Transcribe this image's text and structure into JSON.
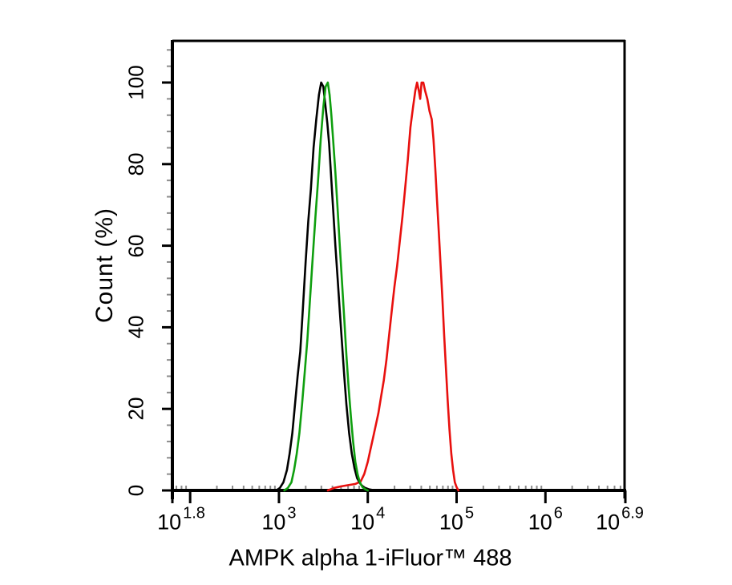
{
  "figure": {
    "background": "#ffffff",
    "axis_color": "#000000",
    "minor_tick_color": "#8c8c8c"
  },
  "chart_data": {
    "type": "line",
    "subtype": "flow-cytometry-histogram-overlay",
    "title": "",
    "xlabel": "AMPK alpha 1-iFluor™ 488",
    "ylabel": "Count (%)",
    "x_scale": "log10",
    "x_range_log10": [
      1.8,
      6.9
    ],
    "y_range": [
      0,
      110.4
    ],
    "grid": false,
    "legend": "none",
    "x_ticks": [
      {
        "base": "10",
        "exp": "1.8",
        "log": 1.8
      },
      {
        "base": "10",
        "exp": "3",
        "log": 3
      },
      {
        "base": "10",
        "exp": "4",
        "log": 4
      },
      {
        "base": "10",
        "exp": "5",
        "log": 5
      },
      {
        "base": "10",
        "exp": "6",
        "log": 6
      },
      {
        "base": "10",
        "exp": "6.9",
        "log": 6.9
      }
    ],
    "x_unlabeled_major_ticks_log": [
      2
    ],
    "y_ticks": [
      {
        "label": "0",
        "value": 0
      },
      {
        "label": "20",
        "value": 20
      },
      {
        "label": "40",
        "value": 40
      },
      {
        "label": "60",
        "value": 60
      },
      {
        "label": "80",
        "value": 80
      },
      {
        "label": "100",
        "value": 100
      }
    ],
    "y_minor_step": 4,
    "series": [
      {
        "name": "red-histogram",
        "color": "#e8100e",
        "peak_log10": 4.6,
        "peak_percent": 100,
        "points": [
          [
            3.55,
            0
          ],
          [
            3.62,
            0.6
          ],
          [
            3.7,
            1
          ],
          [
            3.78,
            1.3
          ],
          [
            3.86,
            1.6
          ],
          [
            3.92,
            2.2
          ],
          [
            3.96,
            4
          ],
          [
            4.0,
            7
          ],
          [
            4.03,
            10
          ],
          [
            4.06,
            13
          ],
          [
            4.09,
            16
          ],
          [
            4.12,
            19
          ],
          [
            4.15,
            23
          ],
          [
            4.18,
            27
          ],
          [
            4.21,
            32
          ],
          [
            4.24,
            38
          ],
          [
            4.27,
            44
          ],
          [
            4.3,
            50
          ],
          [
            4.33,
            55
          ],
          [
            4.36,
            61
          ],
          [
            4.39,
            67
          ],
          [
            4.42,
            74
          ],
          [
            4.45,
            81
          ],
          [
            4.48,
            89
          ],
          [
            4.51,
            94
          ],
          [
            4.535,
            98
          ],
          [
            4.555,
            100
          ],
          [
            4.575,
            98
          ],
          [
            4.59,
            96
          ],
          [
            4.605,
            100
          ],
          [
            4.625,
            100
          ],
          [
            4.645,
            98
          ],
          [
            4.67,
            96
          ],
          [
            4.695,
            93
          ],
          [
            4.72,
            91
          ],
          [
            4.74,
            86
          ],
          [
            4.76,
            79
          ],
          [
            4.78,
            71
          ],
          [
            4.8,
            63
          ],
          [
            4.82,
            55
          ],
          [
            4.84,
            47
          ],
          [
            4.86,
            38
          ],
          [
            4.88,
            30
          ],
          [
            4.9,
            22
          ],
          [
            4.92,
            15
          ],
          [
            4.94,
            9
          ],
          [
            4.96,
            5
          ],
          [
            4.98,
            2
          ],
          [
            5.0,
            0.8
          ],
          [
            5.02,
            0
          ]
        ]
      },
      {
        "name": "black-histogram",
        "color": "#000000",
        "peak_log10": 3.49,
        "peak_percent": 100,
        "points": [
          [
            2.97,
            0
          ],
          [
            3.01,
            0.6
          ],
          [
            3.05,
            2
          ],
          [
            3.09,
            5
          ],
          [
            3.12,
            9
          ],
          [
            3.15,
            14
          ],
          [
            3.18,
            21
          ],
          [
            3.21,
            28
          ],
          [
            3.24,
            34
          ],
          [
            3.27,
            45
          ],
          [
            3.3,
            56
          ],
          [
            3.33,
            66
          ],
          [
            3.36,
            74
          ],
          [
            3.39,
            84
          ],
          [
            3.42,
            91
          ],
          [
            3.45,
            97
          ],
          [
            3.475,
            100
          ],
          [
            3.5,
            99
          ],
          [
            3.52,
            95
          ],
          [
            3.545,
            90
          ],
          [
            3.565,
            85
          ],
          [
            3.59,
            76
          ],
          [
            3.61,
            69
          ],
          [
            3.635,
            60
          ],
          [
            3.66,
            52
          ],
          [
            3.685,
            44
          ],
          [
            3.71,
            36
          ],
          [
            3.735,
            28
          ],
          [
            3.76,
            21
          ],
          [
            3.79,
            14
          ],
          [
            3.82,
            9
          ],
          [
            3.85,
            5.5
          ],
          [
            3.88,
            3
          ],
          [
            3.92,
            1.5
          ],
          [
            3.96,
            0.7
          ],
          [
            4.01,
            0.3
          ],
          [
            4.06,
            0.1
          ],
          [
            4.1,
            0
          ]
        ]
      },
      {
        "name": "green-histogram",
        "color": "#0f9f0f",
        "peak_log10": 3.55,
        "peak_percent": 100,
        "points": [
          [
            3.06,
            0
          ],
          [
            3.1,
            0.6
          ],
          [
            3.14,
            2
          ],
          [
            3.17,
            5
          ],
          [
            3.2,
            9
          ],
          [
            3.23,
            14
          ],
          [
            3.26,
            21
          ],
          [
            3.29,
            29
          ],
          [
            3.32,
            37
          ],
          [
            3.35,
            47
          ],
          [
            3.38,
            57
          ],
          [
            3.41,
            67
          ],
          [
            3.44,
            76
          ],
          [
            3.47,
            86
          ],
          [
            3.5,
            94
          ],
          [
            3.525,
            99
          ],
          [
            3.55,
            100
          ],
          [
            3.57,
            97
          ],
          [
            3.59,
            92
          ],
          [
            3.61,
            86
          ],
          [
            3.635,
            78
          ],
          [
            3.66,
            69
          ],
          [
            3.685,
            60
          ],
          [
            3.71,
            51
          ],
          [
            3.735,
            42
          ],
          [
            3.76,
            33
          ],
          [
            3.785,
            25
          ],
          [
            3.81,
            18
          ],
          [
            3.835,
            12
          ],
          [
            3.86,
            7
          ],
          [
            3.885,
            4
          ],
          [
            3.91,
            2
          ],
          [
            3.94,
            0.8
          ],
          [
            3.97,
            0.3
          ],
          [
            4.0,
            0
          ]
        ]
      }
    ]
  }
}
